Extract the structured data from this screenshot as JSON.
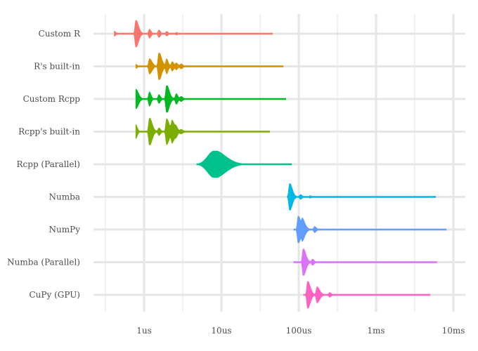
{
  "chart_data": {
    "type": "violin",
    "x_scale": "log10",
    "x_unit": "seconds",
    "xlim": [
      3e-07,
      0.011
    ],
    "x_ticks": [
      {
        "value": 1e-06,
        "label": "1us"
      },
      {
        "value": 1e-05,
        "label": "10us"
      },
      {
        "value": 0.0001,
        "label": "100us"
      },
      {
        "value": 0.001,
        "label": "1ms"
      },
      {
        "value": 0.01,
        "label": "10ms"
      }
    ],
    "grid": true,
    "legend": "none",
    "series": [
      {
        "name": "Custom R",
        "color": "#F8766D",
        "min": 4.1e-07,
        "max": 4.6e-05,
        "modes": [
          [
            4.1e-07,
            0.18
          ],
          [
            7.8e-07,
            1.0
          ],
          [
            1.17e-06,
            0.3
          ],
          [
            1.55e-06,
            0.25
          ],
          [
            1.95e-06,
            0.15
          ],
          [
            2.6e-06,
            0.08
          ]
        ]
      },
      {
        "name": "R's built-in",
        "color": "#D39200",
        "min": 7.8e-07,
        "max": 6.3e-05,
        "modes": [
          [
            7.8e-07,
            0.15
          ],
          [
            1.17e-06,
            0.55
          ],
          [
            1.55e-06,
            1.0
          ],
          [
            1.95e-06,
            0.5
          ],
          [
            2.3e-06,
            0.3
          ],
          [
            2.6e-06,
            0.2
          ],
          [
            3e-06,
            0.15
          ]
        ]
      },
      {
        "name": "Custom Rcpp",
        "color": "#00B81F",
        "min": 7.8e-07,
        "max": 6.8e-05,
        "modes": [
          [
            7.8e-07,
            0.7
          ],
          [
            1.17e-06,
            0.5
          ],
          [
            1.55e-06,
            0.3
          ],
          [
            1.95e-06,
            1.0
          ],
          [
            2.6e-06,
            0.35
          ],
          [
            3e-06,
            0.15
          ]
        ]
      },
      {
        "name": "Rcpp's built-in",
        "color": "#7CAE00",
        "min": 7.8e-07,
        "max": 4.2e-05,
        "modes": [
          [
            7.8e-07,
            0.5
          ],
          [
            1.17e-06,
            1.0
          ],
          [
            1.55e-06,
            0.25
          ],
          [
            1.95e-06,
            0.9
          ],
          [
            2.3e-06,
            0.7
          ],
          [
            2.6e-06,
            0.2
          ],
          [
            3e-06,
            0.12
          ]
        ]
      },
      {
        "name": "Rcpp (Parallel)",
        "color": "#00C08B",
        "min": 4.8e-06,
        "max": 8.1e-05,
        "modes": [
          [
            8e-06,
            1.0
          ]
        ]
      },
      {
        "name": "Numba",
        "color": "#00B8E7",
        "min": 7.1e-05,
        "max": 0.0059,
        "modes": [
          [
            7.6e-05,
            1.0
          ],
          [
            0.000105,
            0.15
          ],
          [
            0.00014,
            0.08
          ]
        ]
      },
      {
        "name": "NumPy",
        "color": "#619CFF",
        "min": 8.6e-05,
        "max": 0.0081,
        "modes": [
          [
            9.8e-05,
            1.0
          ],
          [
            0.000112,
            0.6
          ],
          [
            0.00016,
            0.2
          ]
        ]
      },
      {
        "name": "Numba (Parallel)",
        "color": "#DB72FB",
        "min": 8.6e-05,
        "max": 0.0061,
        "modes": [
          [
            0.000114,
            1.0
          ],
          [
            0.00015,
            0.2
          ]
        ]
      },
      {
        "name": "CuPy (GPU)",
        "color": "#FF61C3",
        "min": 0.000115,
        "max": 0.005,
        "modes": [
          [
            0.00013,
            1.0
          ],
          [
            0.000172,
            0.55
          ],
          [
            0.00025,
            0.15
          ]
        ]
      }
    ]
  }
}
